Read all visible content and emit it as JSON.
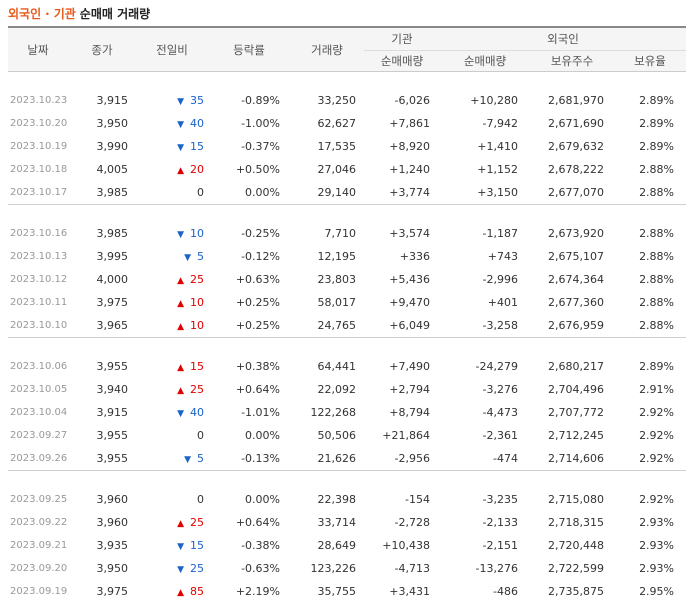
{
  "title": {
    "part1": "외국인",
    "dot": "·",
    "part2": "기관",
    "rest": "순매매 거래량"
  },
  "headers": {
    "date": "날짜",
    "close": "종가",
    "change": "전일비",
    "pct": "등락률",
    "volume": "거래량",
    "inst_group": "기관",
    "foreign_group": "외국인",
    "inst_net": "순매매량",
    "foreign_net": "순매매량",
    "foreign_hold": "보유주수",
    "foreign_ratio": "보유율"
  },
  "colors": {
    "up": "#e00000",
    "down": "#1a63c9",
    "accent": "#e85a1c"
  },
  "rows": [
    {
      "date": "2023.10.23",
      "close": "3,915",
      "dir": "down",
      "change": "35",
      "pct": "-0.89%",
      "volume": "33,250",
      "inst": "-6,026",
      "foreign": "+10,280",
      "hold": "2,681,970",
      "ratio": "2.89%"
    },
    {
      "date": "2023.10.20",
      "close": "3,950",
      "dir": "down",
      "change": "40",
      "pct": "-1.00%",
      "volume": "62,627",
      "inst": "+7,861",
      "foreign": "-7,942",
      "hold": "2,671,690",
      "ratio": "2.89%"
    },
    {
      "date": "2023.10.19",
      "close": "3,990",
      "dir": "down",
      "change": "15",
      "pct": "-0.37%",
      "volume": "17,535",
      "inst": "+8,920",
      "foreign": "+1,410",
      "hold": "2,679,632",
      "ratio": "2.89%"
    },
    {
      "date": "2023.10.18",
      "close": "4,005",
      "dir": "up",
      "change": "20",
      "pct": "+0.50%",
      "volume": "27,046",
      "inst": "+1,240",
      "foreign": "+1,152",
      "hold": "2,678,222",
      "ratio": "2.88%"
    },
    {
      "date": "2023.10.17",
      "close": "3,985",
      "dir": "flat",
      "change": "0",
      "pct": "0.00%",
      "volume": "29,140",
      "inst": "+3,774",
      "foreign": "+3,150",
      "hold": "2,677,070",
      "ratio": "2.88%"
    },
    {
      "date": "2023.10.16",
      "close": "3,985",
      "dir": "down",
      "change": "10",
      "pct": "-0.25%",
      "volume": "7,710",
      "inst": "+3,574",
      "foreign": "-1,187",
      "hold": "2,673,920",
      "ratio": "2.88%"
    },
    {
      "date": "2023.10.13",
      "close": "3,995",
      "dir": "down",
      "change": "5",
      "pct": "-0.12%",
      "volume": "12,195",
      "inst": "+336",
      "foreign": "+743",
      "hold": "2,675,107",
      "ratio": "2.88%"
    },
    {
      "date": "2023.10.12",
      "close": "4,000",
      "dir": "up",
      "change": "25",
      "pct": "+0.63%",
      "volume": "23,803",
      "inst": "+5,436",
      "foreign": "-2,996",
      "hold": "2,674,364",
      "ratio": "2.88%"
    },
    {
      "date": "2023.10.11",
      "close": "3,975",
      "dir": "up",
      "change": "10",
      "pct": "+0.25%",
      "volume": "58,017",
      "inst": "+9,470",
      "foreign": "+401",
      "hold": "2,677,360",
      "ratio": "2.88%"
    },
    {
      "date": "2023.10.10",
      "close": "3,965",
      "dir": "up",
      "change": "10",
      "pct": "+0.25%",
      "volume": "24,765",
      "inst": "+6,049",
      "foreign": "-3,258",
      "hold": "2,676,959",
      "ratio": "2.88%"
    },
    {
      "date": "2023.10.06",
      "close": "3,955",
      "dir": "up",
      "change": "15",
      "pct": "+0.38%",
      "volume": "64,441",
      "inst": "+7,490",
      "foreign": "-24,279",
      "hold": "2,680,217",
      "ratio": "2.89%"
    },
    {
      "date": "2023.10.05",
      "close": "3,940",
      "dir": "up",
      "change": "25",
      "pct": "+0.64%",
      "volume": "22,092",
      "inst": "+2,794",
      "foreign": "-3,276",
      "hold": "2,704,496",
      "ratio": "2.91%"
    },
    {
      "date": "2023.10.04",
      "close": "3,915",
      "dir": "down",
      "change": "40",
      "pct": "-1.01%",
      "volume": "122,268",
      "inst": "+8,794",
      "foreign": "-4,473",
      "hold": "2,707,772",
      "ratio": "2.92%"
    },
    {
      "date": "2023.09.27",
      "close": "3,955",
      "dir": "flat",
      "change": "0",
      "pct": "0.00%",
      "volume": "50,506",
      "inst": "+21,864",
      "foreign": "-2,361",
      "hold": "2,712,245",
      "ratio": "2.92%"
    },
    {
      "date": "2023.09.26",
      "close": "3,955",
      "dir": "down",
      "change": "5",
      "pct": "-0.13%",
      "volume": "21,626",
      "inst": "-2,956",
      "foreign": "-474",
      "hold": "2,714,606",
      "ratio": "2.92%"
    },
    {
      "date": "2023.09.25",
      "close": "3,960",
      "dir": "flat",
      "change": "0",
      "pct": "0.00%",
      "volume": "22,398",
      "inst": "-154",
      "foreign": "-3,235",
      "hold": "2,715,080",
      "ratio": "2.92%"
    },
    {
      "date": "2023.09.22",
      "close": "3,960",
      "dir": "up",
      "change": "25",
      "pct": "+0.64%",
      "volume": "33,714",
      "inst": "-2,728",
      "foreign": "-2,133",
      "hold": "2,718,315",
      "ratio": "2.93%"
    },
    {
      "date": "2023.09.21",
      "close": "3,935",
      "dir": "down",
      "change": "15",
      "pct": "-0.38%",
      "volume": "28,649",
      "inst": "+10,438",
      "foreign": "-2,151",
      "hold": "2,720,448",
      "ratio": "2.93%"
    },
    {
      "date": "2023.09.20",
      "close": "3,950",
      "dir": "down",
      "change": "25",
      "pct": "-0.63%",
      "volume": "123,226",
      "inst": "-4,713",
      "foreign": "-13,276",
      "hold": "2,722,599",
      "ratio": "2.93%"
    },
    {
      "date": "2023.09.19",
      "close": "3,975",
      "dir": "up",
      "change": "85",
      "pct": "+2.19%",
      "volume": "35,755",
      "inst": "+3,431",
      "foreign": "-486",
      "hold": "2,735,875",
      "ratio": "2.95%"
    }
  ]
}
